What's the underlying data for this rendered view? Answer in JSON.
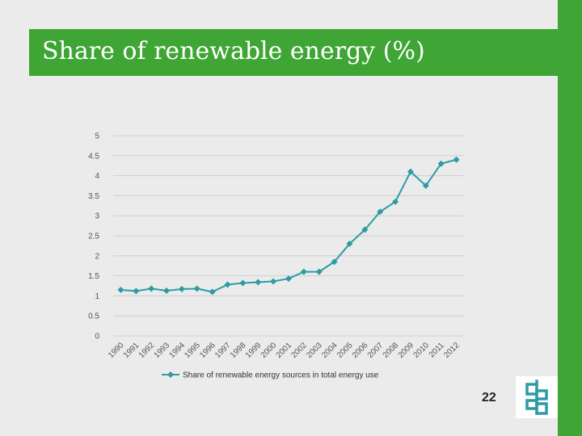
{
  "slide": {
    "title": "Share of renewable energy (%)",
    "page_number": "22"
  },
  "colors": {
    "accent": "#3fa535",
    "series": "#2e9ba4",
    "grid": "#cfcfcf",
    "axis_text": "#555555",
    "logo": "#2e9ba4"
  },
  "chart_data": {
    "type": "line",
    "title": "",
    "xlabel": "",
    "ylabel": "",
    "ylim": [
      0,
      5
    ],
    "yticks": [
      "0",
      "0.5",
      "1",
      "1.5",
      "2",
      "2.5",
      "3",
      "3.5",
      "4",
      "4.5",
      "5"
    ],
    "categories": [
      "1990",
      "1991",
      "1992",
      "1993",
      "1994",
      "1995",
      "1996",
      "1997",
      "1998",
      "1999",
      "2000",
      "2001",
      "2002",
      "2003",
      "2004",
      "2005",
      "2006",
      "2007",
      "2008",
      "2009",
      "2010",
      "2011",
      "2012"
    ],
    "series": [
      {
        "name": "Share of renewable energy sources in total energy use",
        "values": [
          1.15,
          1.12,
          1.18,
          1.13,
          1.17,
          1.18,
          1.1,
          1.28,
          1.32,
          1.34,
          1.36,
          1.43,
          1.6,
          1.6,
          1.85,
          2.3,
          2.65,
          3.1,
          3.35,
          4.1,
          3.75,
          4.3,
          4.4
        ]
      }
    ],
    "legend_position": "bottom"
  }
}
